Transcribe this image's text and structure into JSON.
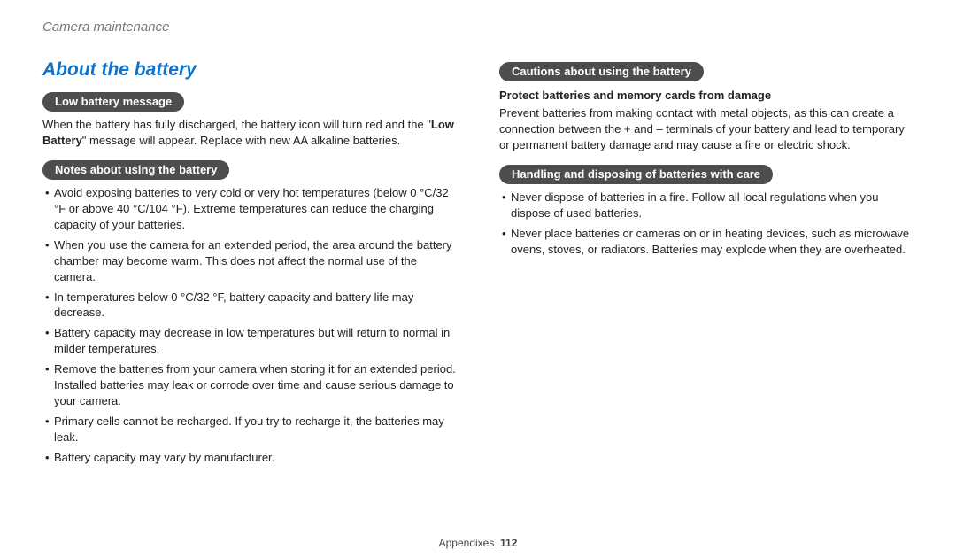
{
  "header": {
    "section": "Camera maintenance"
  },
  "left": {
    "title": "About the battery",
    "pill1": "Low battery message",
    "p1a": "When the battery has fully discharged, the battery icon will turn red and the \"",
    "p1b": "Low Battery",
    "p1c": "\" message will appear. Replace with new AA alkaline batteries.",
    "pill2": "Notes about using the battery",
    "notes": [
      "Avoid exposing batteries to very cold or very hot temperatures (below 0 °C/32 °F or above 40 °C/104 °F). Extreme temperatures can reduce the charging capacity of your batteries.",
      "When you use the camera for an extended period, the area around the battery chamber may become warm. This does not affect the normal use of the camera.",
      "In temperatures below 0 °C/32 °F, battery capacity and battery life may decrease.",
      "Battery capacity may decrease in low temperatures but will return to normal in milder temperatures.",
      "Remove the batteries from your camera when storing it for an extended period. Installed batteries may leak or corrode over time and cause serious damage to your camera.",
      "Primary cells cannot be recharged. If you try to recharge it, the batteries may leak.",
      "Battery capacity may vary by manufacturer."
    ]
  },
  "right": {
    "pill1": "Cautions about using the battery",
    "sub1": "Protect batteries and memory cards from damage",
    "p1": "Prevent batteries from making contact with metal objects, as this can create a connection between the + and – terminals of your battery and lead to temporary or permanent battery damage and may cause a fire or electric shock.",
    "pill2": "Handling and disposing of batteries with care",
    "notes": [
      "Never dispose of batteries in a fire. Follow all local regulations when you dispose of used batteries.",
      "Never place batteries or cameras on or in heating devices, such as microwave ovens, stoves, or radiators. Batteries may explode when they are overheated."
    ]
  },
  "footer": {
    "label": "Appendixes",
    "page": "112"
  },
  "colors": {
    "accent": "#0f72c9",
    "pill_bg": "#4d4d4d",
    "header_text": "#777",
    "body_text": "#222",
    "background": "#ffffff"
  }
}
